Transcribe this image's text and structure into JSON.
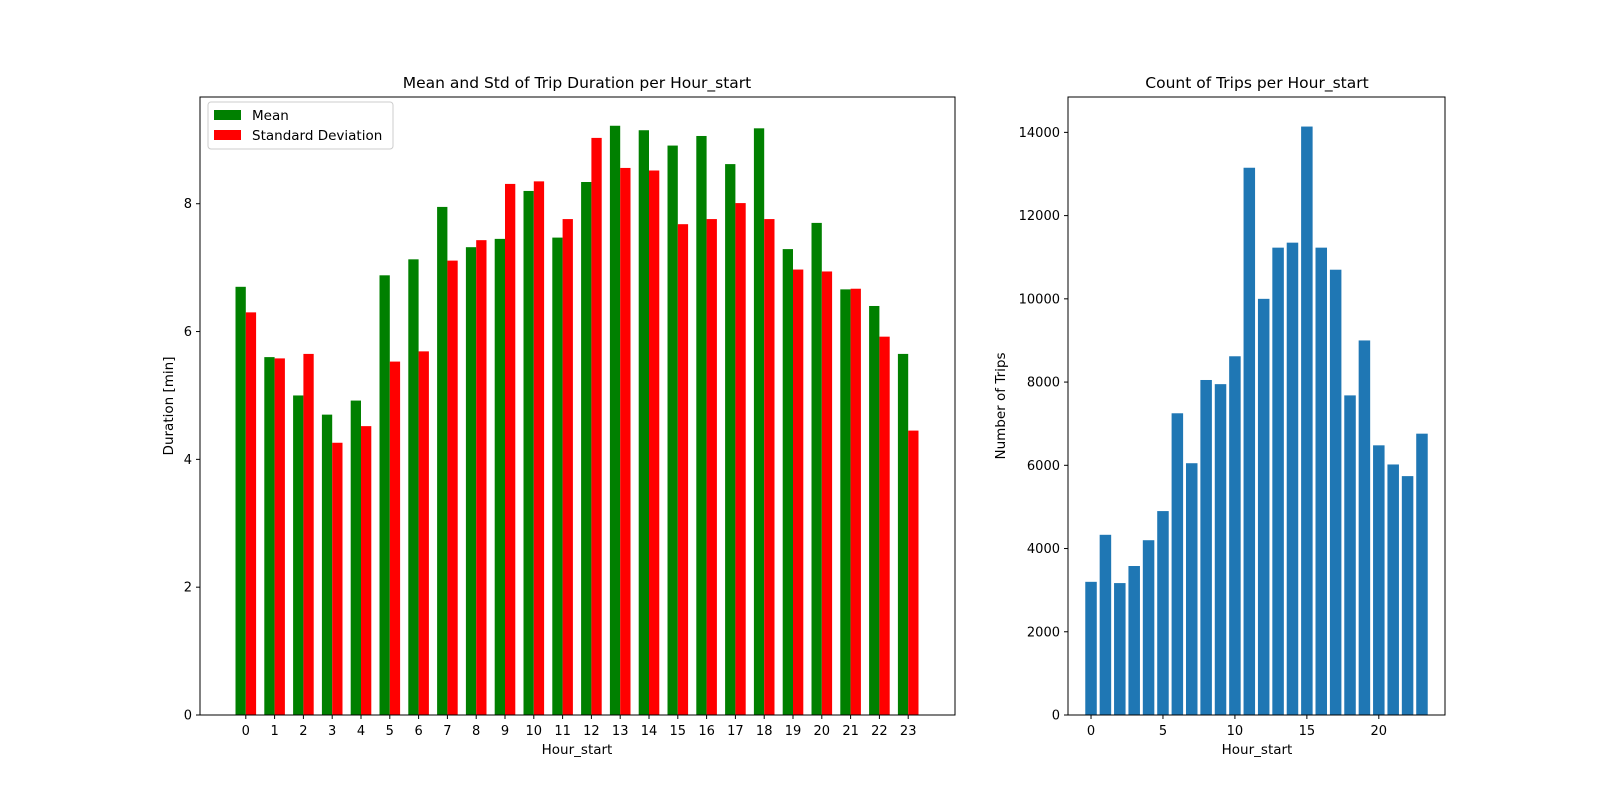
{
  "chart_data": [
    {
      "type": "bar",
      "title": "Mean and Std of Trip Duration per Hour_start",
      "xlabel": "Hour_start",
      "ylabel": "Duration [min]",
      "categories": [
        "0",
        "1",
        "2",
        "3",
        "4",
        "5",
        "6",
        "7",
        "8",
        "9",
        "10",
        "11",
        "12",
        "13",
        "14",
        "15",
        "16",
        "17",
        "18",
        "19",
        "20",
        "21",
        "22",
        "23"
      ],
      "series": [
        {
          "name": "Mean",
          "color": "#008000",
          "values": [
            6.7,
            5.6,
            5.0,
            4.7,
            4.92,
            6.88,
            7.13,
            7.95,
            7.32,
            7.45,
            8.2,
            7.47,
            8.34,
            9.22,
            9.15,
            8.91,
            9.06,
            8.62,
            9.18,
            7.29,
            7.7,
            6.66,
            6.4,
            5.65
          ]
        },
        {
          "name": "Standard Deviation",
          "color": "#ff0000",
          "values": [
            6.3,
            5.58,
            5.65,
            4.26,
            4.52,
            5.53,
            5.69,
            7.11,
            7.43,
            8.31,
            8.35,
            7.76,
            9.03,
            8.56,
            8.52,
            7.68,
            7.76,
            8.01,
            7.76,
            6.97,
            6.94,
            6.67,
            5.92,
            4.45
          ]
        }
      ],
      "ylim": [
        0,
        9.67
      ],
      "yticks": [
        0,
        2,
        4,
        6,
        8
      ],
      "legend": "top-left",
      "grid": false
    },
    {
      "type": "bar",
      "title": "Count of Trips per Hour_start",
      "xlabel": "Hour_start",
      "ylabel": "Number of Trips",
      "x": [
        0,
        1,
        2,
        3,
        4,
        5,
        6,
        7,
        8,
        9,
        10,
        11,
        12,
        13,
        14,
        15,
        16,
        17,
        18,
        19,
        20,
        21,
        22,
        23
      ],
      "values": [
        3200,
        4330,
        3170,
        3580,
        4200,
        4900,
        7250,
        6050,
        8050,
        7950,
        8620,
        13150,
        10000,
        11230,
        11350,
        14140,
        11230,
        10700,
        7680,
        9000,
        6480,
        6020,
        5740,
        6760
      ],
      "color": "#1f77b4",
      "xlim": [
        -1.6,
        24.6
      ],
      "xticks": [
        0,
        5,
        10,
        15,
        20
      ],
      "ylim": [
        0,
        14850
      ],
      "yticks": [
        0,
        2000,
        4000,
        6000,
        8000,
        10000,
        12000,
        14000
      ],
      "grid": false
    }
  ]
}
